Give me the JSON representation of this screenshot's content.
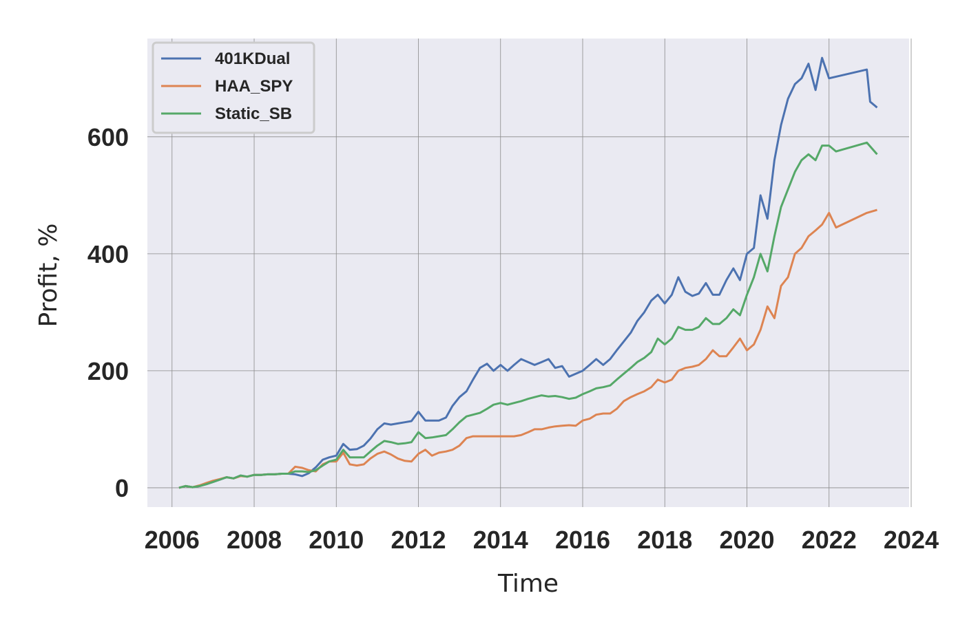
{
  "chart_data": {
    "type": "line",
    "title": "",
    "xlabel": "Time",
    "ylabel": "Profit, %",
    "xlim": [
      2005.4,
      2023.95
    ],
    "ylim": [
      -33,
      768
    ],
    "x_ticks": [
      "2006",
      "2008",
      "2010",
      "2012",
      "2014",
      "2016",
      "2018",
      "2020",
      "2022",
      "2024"
    ],
    "y_ticks": [
      "0",
      "200",
      "400",
      "600"
    ],
    "grid": true,
    "legend_position": "upper-left",
    "background": "#eaeaf2",
    "series": [
      {
        "name": "401KDual",
        "color": "#4c72b0",
        "x": [
          2006.17,
          2006.33,
          2006.5,
          2006.67,
          2006.83,
          2007.0,
          2007.17,
          2007.33,
          2007.5,
          2007.67,
          2007.83,
          2008.0,
          2008.17,
          2008.33,
          2008.5,
          2008.67,
          2008.83,
          2009.0,
          2009.17,
          2009.33,
          2009.5,
          2009.67,
          2009.83,
          2010.0,
          2010.17,
          2010.33,
          2010.5,
          2010.67,
          2010.83,
          2011.0,
          2011.17,
          2011.33,
          2011.5,
          2011.67,
          2011.83,
          2012.0,
          2012.17,
          2012.33,
          2012.5,
          2012.67,
          2012.83,
          2013.0,
          2013.17,
          2013.33,
          2013.5,
          2013.67,
          2013.83,
          2014.0,
          2014.17,
          2014.33,
          2014.5,
          2014.67,
          2014.83,
          2015.0,
          2015.17,
          2015.33,
          2015.5,
          2015.67,
          2015.83,
          2016.0,
          2016.17,
          2016.33,
          2016.5,
          2016.67,
          2016.83,
          2017.0,
          2017.17,
          2017.33,
          2017.5,
          2017.67,
          2017.83,
          2018.0,
          2018.17,
          2018.33,
          2018.5,
          2018.67,
          2018.83,
          2019.0,
          2019.17,
          2019.33,
          2019.5,
          2019.67,
          2019.83,
          2020.0,
          2020.17,
          2020.33,
          2020.5,
          2020.67,
          2020.83,
          2021.0,
          2021.17,
          2021.33,
          2021.5,
          2021.67,
          2021.83,
          2022.0,
          2022.92,
          2023.0,
          2023.17
        ],
        "y": [
          0,
          3,
          1,
          3,
          6,
          10,
          14,
          18,
          16,
          21,
          19,
          22,
          22,
          23,
          23,
          24,
          24,
          23,
          20,
          25,
          35,
          48,
          52,
          55,
          75,
          65,
          66,
          72,
          84,
          100,
          110,
          108,
          110,
          112,
          114,
          130,
          115,
          115,
          115,
          120,
          140,
          155,
          165,
          185,
          205,
          212,
          200,
          210,
          200,
          210,
          220,
          215,
          210,
          215,
          220,
          205,
          208,
          190,
          195,
          200,
          210,
          220,
          210,
          220,
          235,
          250,
          265,
          285,
          300,
          320,
          330,
          315,
          330,
          360,
          335,
          328,
          332,
          350,
          330,
          330,
          355,
          375,
          355,
          400,
          410,
          500,
          460,
          560,
          620,
          665,
          690,
          700,
          725,
          680,
          735,
          700,
          715,
          660,
          650
        ]
      },
      {
        "name": "HAA_SPY",
        "color": "#dd8452",
        "x": [
          2006.17,
          2006.33,
          2006.5,
          2006.67,
          2006.83,
          2007.0,
          2007.17,
          2007.33,
          2007.5,
          2007.67,
          2007.83,
          2008.0,
          2008.17,
          2008.33,
          2008.5,
          2008.67,
          2008.83,
          2009.0,
          2009.17,
          2009.33,
          2009.5,
          2009.67,
          2009.83,
          2010.0,
          2010.17,
          2010.33,
          2010.5,
          2010.67,
          2010.83,
          2011.0,
          2011.17,
          2011.33,
          2011.5,
          2011.67,
          2011.83,
          2012.0,
          2012.17,
          2012.33,
          2012.5,
          2012.67,
          2012.83,
          2013.0,
          2013.17,
          2013.33,
          2013.5,
          2013.67,
          2013.83,
          2014.0,
          2014.17,
          2014.33,
          2014.5,
          2014.67,
          2014.83,
          2015.0,
          2015.17,
          2015.33,
          2015.5,
          2015.67,
          2015.83,
          2016.0,
          2016.17,
          2016.33,
          2016.5,
          2016.67,
          2016.83,
          2017.0,
          2017.17,
          2017.33,
          2017.5,
          2017.67,
          2017.83,
          2018.0,
          2018.17,
          2018.33,
          2018.5,
          2018.67,
          2018.83,
          2019.0,
          2019.17,
          2019.33,
          2019.5,
          2019.67,
          2019.83,
          2020.0,
          2020.17,
          2020.33,
          2020.5,
          2020.67,
          2020.83,
          2021.0,
          2021.17,
          2021.33,
          2021.5,
          2021.67,
          2021.83,
          2022.0,
          2022.17,
          2022.92,
          2023.17
        ],
        "y": [
          0,
          3,
          1,
          4,
          8,
          12,
          15,
          18,
          16,
          20,
          19,
          22,
          22,
          23,
          23,
          24,
          24,
          36,
          34,
          30,
          28,
          40,
          45,
          45,
          60,
          40,
          38,
          40,
          50,
          58,
          62,
          57,
          50,
          46,
          45,
          58,
          65,
          55,
          60,
          62,
          65,
          72,
          85,
          88,
          88,
          88,
          88,
          88,
          88,
          88,
          90,
          95,
          100,
          100,
          103,
          105,
          106,
          107,
          106,
          115,
          118,
          125,
          127,
          127,
          135,
          148,
          155,
          160,
          165,
          172,
          185,
          180,
          185,
          200,
          205,
          207,
          210,
          220,
          235,
          225,
          225,
          240,
          255,
          235,
          245,
          270,
          310,
          290,
          345,
          360,
          400,
          410,
          430,
          440,
          450,
          470,
          445,
          470,
          475
        ]
      },
      {
        "name": "Static_SB",
        "color": "#55a868",
        "x": [
          2006.17,
          2006.33,
          2006.5,
          2006.67,
          2006.83,
          2007.0,
          2007.17,
          2007.33,
          2007.5,
          2007.67,
          2007.83,
          2008.0,
          2008.17,
          2008.33,
          2008.5,
          2008.67,
          2008.83,
          2009.0,
          2009.17,
          2009.33,
          2009.5,
          2009.67,
          2009.83,
          2010.0,
          2010.17,
          2010.33,
          2010.5,
          2010.67,
          2010.83,
          2011.0,
          2011.17,
          2011.33,
          2011.5,
          2011.67,
          2011.83,
          2012.0,
          2012.17,
          2012.33,
          2012.5,
          2012.67,
          2012.83,
          2013.0,
          2013.17,
          2013.33,
          2013.5,
          2013.67,
          2013.83,
          2014.0,
          2014.17,
          2014.33,
          2014.5,
          2014.67,
          2014.83,
          2015.0,
          2015.17,
          2015.33,
          2015.5,
          2015.67,
          2015.83,
          2016.0,
          2016.17,
          2016.33,
          2016.5,
          2016.67,
          2016.83,
          2017.0,
          2017.17,
          2017.33,
          2017.5,
          2017.67,
          2017.83,
          2018.0,
          2018.17,
          2018.33,
          2018.5,
          2018.67,
          2018.83,
          2019.0,
          2019.17,
          2019.33,
          2019.5,
          2019.67,
          2019.83,
          2020.0,
          2020.17,
          2020.33,
          2020.5,
          2020.67,
          2020.83,
          2021.0,
          2021.17,
          2021.33,
          2021.5,
          2021.67,
          2021.83,
          2022.0,
          2022.17,
          2022.92,
          2023.17
        ],
        "y": [
          0,
          3,
          1,
          3,
          6,
          10,
          14,
          18,
          16,
          21,
          19,
          22,
          22,
          23,
          23,
          24,
          24,
          28,
          28,
          27,
          30,
          38,
          45,
          48,
          65,
          52,
          52,
          52,
          62,
          72,
          80,
          78,
          75,
          76,
          78,
          95,
          85,
          86,
          88,
          90,
          100,
          112,
          122,
          125,
          128,
          135,
          142,
          145,
          142,
          145,
          148,
          152,
          155,
          158,
          156,
          157,
          155,
          152,
          154,
          160,
          165,
          170,
          172,
          175,
          185,
          195,
          205,
          215,
          222,
          232,
          255,
          245,
          255,
          275,
          270,
          270,
          275,
          290,
          280,
          280,
          290,
          305,
          295,
          330,
          360,
          400,
          370,
          430,
          480,
          510,
          540,
          560,
          570,
          560,
          585,
          585,
          575,
          590,
          570
        ]
      }
    ]
  }
}
